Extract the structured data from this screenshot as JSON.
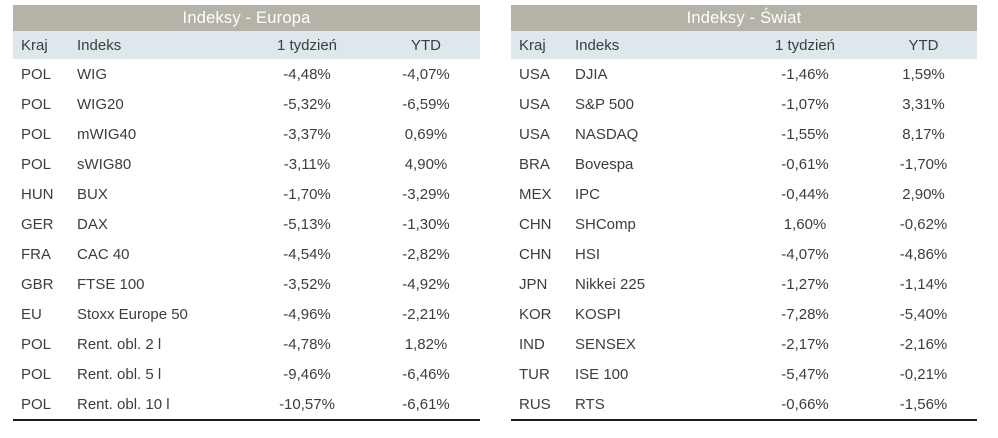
{
  "colors": {
    "title_bg": "#b5b3a8",
    "title_text": "#ffffff",
    "header_bg": "#dde7ec",
    "body_text": "#3d3d3d",
    "border": "#1f1f1f"
  },
  "tables": [
    {
      "id": "europa",
      "title": "Indeksy - Europa",
      "columns": [
        "Kraj",
        "Indeks",
        "1 tydzień",
        "YTD"
      ],
      "rows": [
        [
          "POL",
          "WIG",
          "-4,48%",
          "-4,07%"
        ],
        [
          "POL",
          "WIG20",
          "-5,32%",
          "-6,59%"
        ],
        [
          "POL",
          "mWIG40",
          "-3,37%",
          "0,69%"
        ],
        [
          "POL",
          "sWIG80",
          "-3,11%",
          "4,90%"
        ],
        [
          "HUN",
          "BUX",
          "-1,70%",
          "-3,29%"
        ],
        [
          "GER",
          "DAX",
          "-5,13%",
          "-1,30%"
        ],
        [
          "FRA",
          "CAC 40",
          "-4,54%",
          "-2,82%"
        ],
        [
          "GBR",
          "FTSE 100",
          "-3,52%",
          "-4,92%"
        ],
        [
          "EU",
          "Stoxx Europe 50",
          "-4,96%",
          "-2,21%"
        ],
        [
          "POL",
          "Rent. obl. 2 l",
          "-4,78%",
          "1,82%"
        ],
        [
          "POL",
          "Rent. obl. 5 l",
          "-9,46%",
          "-6,46%"
        ],
        [
          "POL",
          "Rent. obl. 10 l",
          "-10,57%",
          "-6,61%"
        ]
      ]
    },
    {
      "id": "swiat",
      "title": "Indeksy - Świat",
      "columns": [
        "Kraj",
        "Indeks",
        "1 tydzień",
        "YTD"
      ],
      "rows": [
        [
          "USA",
          "DJIA",
          "-1,46%",
          "1,59%"
        ],
        [
          "USA",
          "S&P 500",
          "-1,07%",
          "3,31%"
        ],
        [
          "USA",
          "NASDAQ",
          "-1,55%",
          "8,17%"
        ],
        [
          "BRA",
          "Bovespa",
          "-0,61%",
          "-1,70%"
        ],
        [
          "MEX",
          "IPC",
          "-0,44%",
          "2,90%"
        ],
        [
          "CHN",
          "SHComp",
          "1,60%",
          "-0,62%"
        ],
        [
          "CHN",
          "HSI",
          "-4,07%",
          "-4,86%"
        ],
        [
          "JPN",
          "Nikkei 225",
          "-1,27%",
          "-1,14%"
        ],
        [
          "KOR",
          "KOSPI",
          "-7,28%",
          "-5,40%"
        ],
        [
          "IND",
          "SENSEX",
          "-2,17%",
          "-2,16%"
        ],
        [
          "TUR",
          "ISE 100",
          "-5,47%",
          "-0,21%"
        ],
        [
          "RUS",
          "RTS",
          "-0,66%",
          "-1,56%"
        ]
      ]
    }
  ]
}
